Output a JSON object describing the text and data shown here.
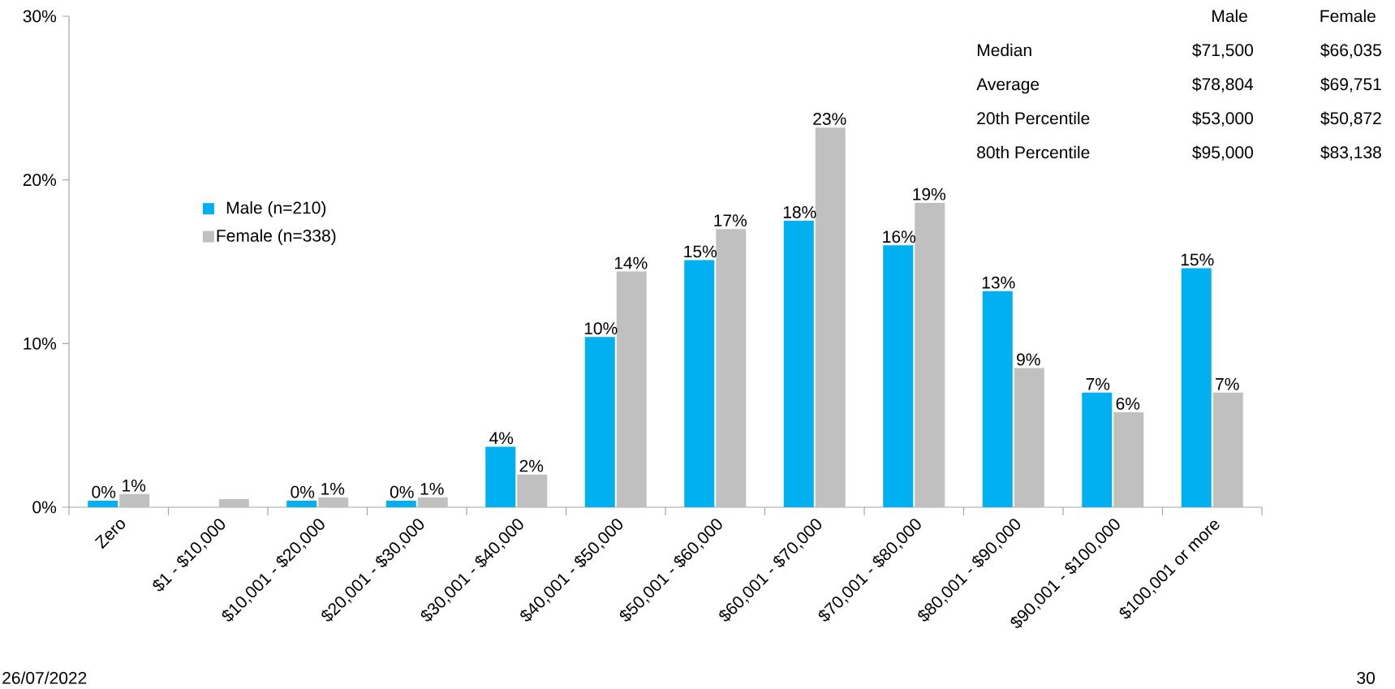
{
  "chart_data": {
    "type": "bar",
    "categories": [
      "Zero",
      "$1 - $10,000",
      "$10,001 - $20,000",
      "$20,001 - $30,000",
      "$30,001 - $40,000",
      "$40,001 - $50,000",
      "$50,001 - $60,000",
      "$60,001 - $70,000",
      "$70,001 - $80,000",
      "$80,001 - $90,000",
      "$90,001 - $100,000",
      "$100,001 or more"
    ],
    "series": [
      {
        "name": "Male (n=210)",
        "color": "#00b0f0",
        "values": [
          0.4,
          null,
          0.4,
          0.4,
          3.7,
          10.4,
          15.1,
          17.5,
          16.0,
          13.2,
          7.0,
          14.6
        ],
        "value_labels": [
          "0%",
          null,
          "0%",
          "0%",
          "4%",
          "10%",
          "15%",
          "18%",
          "16%",
          "13%",
          "7%",
          "15%"
        ]
      },
      {
        "name": "Female (n=338)",
        "color": "#c0c0c0",
        "values": [
          0.8,
          0.5,
          0.6,
          0.6,
          2.0,
          14.4,
          17.0,
          23.2,
          18.6,
          8.5,
          5.8,
          7.0
        ],
        "value_labels": [
          "1%",
          null,
          "1%",
          "1%",
          "2%",
          "14%",
          "17%",
          "23%",
          "19%",
          "9%",
          "6%",
          "7%"
        ]
      }
    ],
    "ylim": [
      0,
      30
    ],
    "yticks": [
      {
        "value": 0,
        "label": "0%"
      },
      {
        "value": 10,
        "label": "10%"
      },
      {
        "value": 20,
        "label": "20%"
      },
      {
        "value": 30,
        "label": "30%"
      }
    ],
    "legend": "top left",
    "annotations": [
      "26/07/2022",
      "30",
      "Male",
      "Female",
      "Median",
      "$71,500",
      "$66,035",
      "Average",
      "$78,804",
      "$69,751",
      "20th Percentile",
      "$53,000",
      "$50,872",
      "80th Percentile",
      "$95,000",
      "$83,138"
    ]
  }
}
